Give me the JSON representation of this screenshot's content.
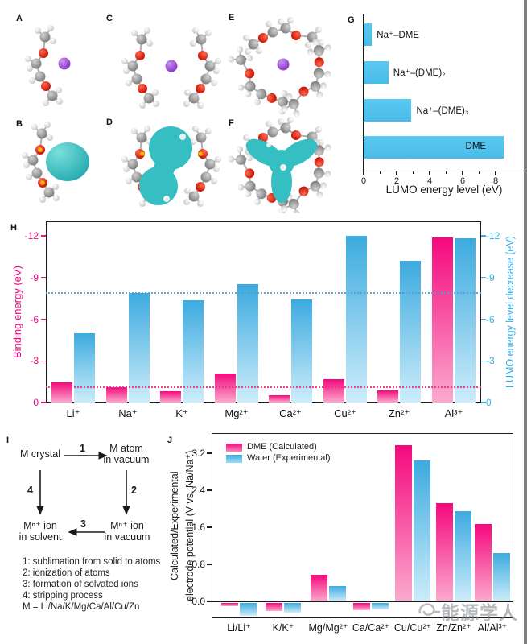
{
  "panels": {
    "a": "A",
    "b": "B",
    "c": "C",
    "d": "D",
    "e": "E",
    "f": "F",
    "g": "G",
    "h": "H",
    "i": "I",
    "j": "J"
  },
  "colors": {
    "pink_dark": "#F5087D",
    "pink_light": "#FBAACE",
    "blue_dark": "#3CABDF",
    "blue_light": "#CDECFA",
    "g_bar_top": "#5BC9F0",
    "g_bar_bottom": "#47BCE9",
    "axis_pink": "#F2077C",
    "axis_blue": "#38AEE0",
    "ref_pink": "#ED2F87",
    "ref_blue": "#4E9FD1"
  },
  "chart_data": [
    {
      "panel": "G",
      "type": "bar",
      "orientation": "horizontal",
      "categories": [
        "Na⁺–DME",
        "Na⁺–(DME)₂",
        "Na⁺–(DME)₃",
        "DME"
      ],
      "values": [
        0.5,
        1.5,
        2.9,
        8.5
      ],
      "xlabel": "LUMO energy level (eV)",
      "xticks": [
        0,
        2,
        4,
        6,
        8
      ],
      "minor_xticks": [
        1,
        3,
        5,
        7
      ],
      "xlim": [
        0,
        9.7
      ],
      "grid": false
    },
    {
      "panel": "H",
      "type": "bar",
      "categories": [
        "Li⁺",
        "Na⁺",
        "K⁺",
        "Mg²⁺",
        "Ca²⁺",
        "Cu²⁺",
        "Zn²⁺",
        "Al³⁺"
      ],
      "series": [
        {
          "name": "Binding energy (eV)",
          "axis": "left",
          "color": "pink",
          "values": [
            1.45,
            1.1,
            0.8,
            2.1,
            0.55,
            1.7,
            0.9,
            11.9
          ]
        },
        {
          "name": "LUMO energy level decrease (eV)",
          "axis": "right",
          "color": "blue",
          "values": [
            5.0,
            7.9,
            7.35,
            8.55,
            7.45,
            12.0,
            10.2,
            11.8
          ]
        }
      ],
      "left_ylabel": "Binding energy (eV)",
      "right_ylabel": "LUMO energy level decrease (eV)",
      "yticks": [
        {
          "label": "-12",
          "value": 12
        },
        {
          "label": "-9",
          "value": 9
        },
        {
          "label": "-6",
          "value": 6
        },
        {
          "label": "-3",
          "value": 3
        },
        {
          "label": "0",
          "value": 0
        }
      ],
      "ylim": [
        0,
        13.05
      ],
      "ref_lines": [
        {
          "value": 7.9,
          "color": "blue"
        },
        {
          "value": 1.1,
          "color": "pink"
        }
      ]
    },
    {
      "panel": "J",
      "type": "bar",
      "categories": [
        "Li/Li⁺",
        "K/K⁺",
        "Mg/Mg²⁺",
        "Ca/Ca²⁺",
        "Cu/Cu²⁺",
        "Zn/Zn²⁺",
        "Al/Al³⁺"
      ],
      "series": [
        {
          "name": "DME (Calculated)",
          "color": "pink",
          "values": [
            -0.07,
            -0.18,
            0.58,
            -0.17,
            3.37,
            2.13,
            1.67
          ]
        },
        {
          "name": "Water (Experimental)",
          "color": "blue",
          "values": [
            -0.28,
            -0.21,
            0.34,
            -0.15,
            3.04,
            1.95,
            1.05
          ]
        }
      ],
      "ylabel_line1": "Calculated/Experimental",
      "ylabel_line2": "electrode potential (V vs. Na/Na⁺)",
      "yticks": [
        {
          "label": "0.0",
          "value": 0
        },
        {
          "label": "0.8",
          "value": 0.8
        },
        {
          "label": "1.6",
          "value": 1.6
        },
        {
          "label": "2.4",
          "value": 2.4
        },
        {
          "label": "3.2",
          "value": 3.2
        }
      ],
      "ylim": [
        -0.45,
        3.65
      ],
      "legend_position": "top-left"
    }
  ],
  "diagram": {
    "node_crystal": "M crystal",
    "node_atom_line1": "M atom",
    "node_atom_line2": "in vacuum",
    "node_ion_vacuum_line1": "Mⁿ⁺ ion",
    "node_ion_vacuum_line2": "in vacuum",
    "node_ion_solvent_line1": "Mⁿ⁺ ion",
    "node_ion_solvent_line2": "in solvent",
    "arrow1_label": "1",
    "arrow2_label": "2",
    "arrow3_label": "3",
    "arrow4_label": "4",
    "legend": [
      "1: sublimation from solid to atoms",
      "2: ionization of atoms",
      "3: formation of solvated ions",
      "4: stripping process",
      "M = Li/Na/K/Mg/Ca/Al/Cu/Zn"
    ]
  },
  "watermark": {
    "text": "能源学人"
  }
}
